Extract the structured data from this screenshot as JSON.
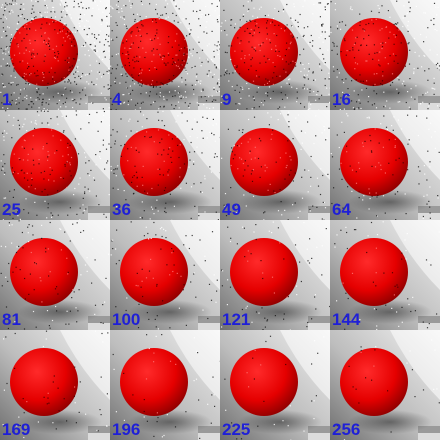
{
  "image": {
    "description_kind": "render-sample-grid",
    "tiles": [
      {
        "label": "1",
        "noise": 1.0
      },
      {
        "label": "4",
        "noise": 0.82
      },
      {
        "label": "9",
        "noise": 0.62
      },
      {
        "label": "16",
        "noise": 0.5
      },
      {
        "label": "25",
        "noise": 0.4
      },
      {
        "label": "36",
        "noise": 0.33
      },
      {
        "label": "49",
        "noise": 0.27
      },
      {
        "label": "64",
        "noise": 0.23
      },
      {
        "label": "81",
        "noise": 0.19
      },
      {
        "label": "100",
        "noise": 0.16
      },
      {
        "label": "121",
        "noise": 0.14
      },
      {
        "label": "144",
        "noise": 0.12
      },
      {
        "label": "169",
        "noise": 0.1
      },
      {
        "label": "196",
        "noise": 0.08
      },
      {
        "label": "225",
        "noise": 0.06
      },
      {
        "label": "256",
        "noise": 0.05
      }
    ],
    "colors": {
      "sphere": "#e50000",
      "sphere_highlight": "#ff2a2a",
      "sphere_shadow": "#8a0000",
      "background_light": "#f2f2f2",
      "background_mid": "#bdbdbd",
      "background_dark": "#6e6e6e",
      "label": "#1f1fd6"
    }
  }
}
